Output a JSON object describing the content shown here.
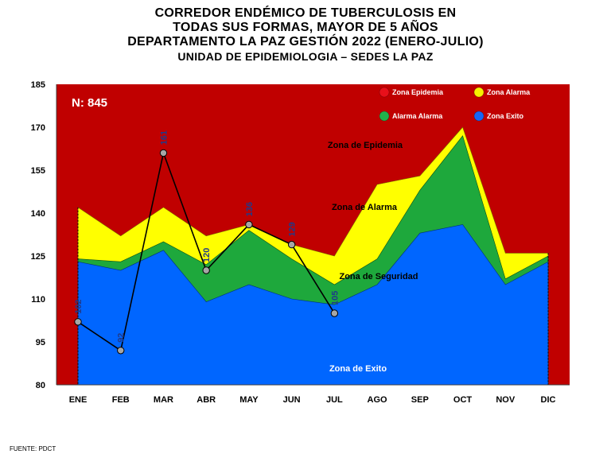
{
  "title": {
    "line1": "CORREDOR ENDÉMICO DE TUBERCULOSIS EN",
    "line2": "TODAS SUS FORMAS, MAYOR DE 5 AÑOS",
    "line3": "DEPARTAMENTO  LA PAZ GESTIÓN 2022 (ENERO-JULIO)",
    "line4": "UNIDAD DE EPIDEMIOLOGIA – SEDES LA PAZ"
  },
  "footer": "FUENTE:  PDCT",
  "chart_data": {
    "type": "area",
    "categories": [
      "ENE",
      "FEB",
      "MAR",
      "ABR",
      "MAY",
      "JUN",
      "JUL",
      "AGO",
      "SEP",
      "OCT",
      "NOV",
      "DIC"
    ],
    "ylim": [
      80,
      185
    ],
    "yticks": [
      80,
      95,
      110,
      125,
      140,
      155,
      170,
      185
    ],
    "grid": false,
    "n_label": "N: 845",
    "zone_bounds": {
      "exito_upper": [
        123,
        120,
        127,
        109,
        115,
        110,
        108,
        115,
        133,
        136,
        115,
        123
      ],
      "seguridad_upper": [
        124,
        123,
        130,
        122,
        134,
        124,
        115,
        124,
        148,
        167,
        117,
        125
      ],
      "alarma_upper": [
        142,
        132,
        142,
        132,
        136,
        129,
        125,
        150,
        153,
        170,
        126,
        126
      ]
    },
    "series": [
      {
        "name": "2022",
        "x": [
          "ENE",
          "FEB",
          "MAR",
          "ABR",
          "MAY",
          "JUN",
          "JUL"
        ],
        "values": [
          102,
          92,
          161,
          120,
          136,
          129,
          105
        ]
      }
    ],
    "legend": [
      {
        "label": "Zona Epidemia",
        "color": "#e8101a"
      },
      {
        "label": "Zona  Alarma",
        "color": "#f7f000"
      },
      {
        "label": "Alarma  Alarma",
        "color": "#22b14c"
      },
      {
        "label": "Zona Exito",
        "color": "#1565f5"
      }
    ],
    "zone_labels": {
      "epidemia": "Zona de Epidemia",
      "alarma": "Zona de Alarma",
      "seguridad": "Zona de Seguridad",
      "exito": "Zona de Exito"
    },
    "colors": {
      "epidemia": "#c00000",
      "alarma": "#ffff00",
      "seguridad": "#1ea83c",
      "exito": "#0066ff",
      "line": "#000000",
      "marker": "#a6a6a6",
      "value_label": "#1f3a8a"
    }
  }
}
